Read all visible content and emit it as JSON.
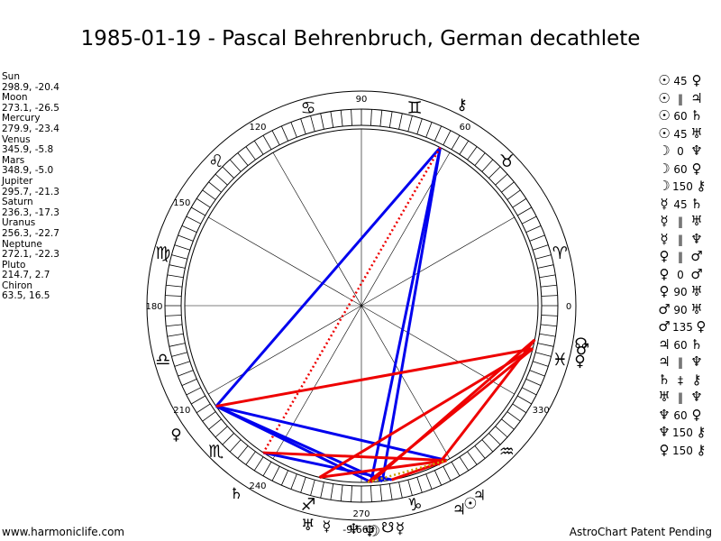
{
  "header": {
    "title": "1985-01-19 - Pascal Behrenbruch, German decathlete"
  },
  "planets": [
    {
      "name": "Sun",
      "coords": "298.9, -20.4",
      "lon": 298.9,
      "glyph": "☉",
      "color": "#000000"
    },
    {
      "name": "Moon",
      "coords": "273.1, -26.5",
      "lon": 273.1,
      "glyph": "☽",
      "color": "#000000"
    },
    {
      "name": "Mercury",
      "coords": "279.9, -23.4",
      "lon": 279.9,
      "glyph": "☿",
      "color": "#000000"
    },
    {
      "name": "Venus",
      "coords": "345.9, -5.8",
      "lon": 345.9,
      "glyph": "♀",
      "color": "#000000"
    },
    {
      "name": "Mars",
      "coords": "348.9, -5.0",
      "lon": 348.9,
      "glyph": "♂",
      "color": "#000000"
    },
    {
      "name": "Jupiter",
      "coords": "295.7, -21.3",
      "lon": 295.7,
      "glyph": "♃",
      "color": "#000000"
    },
    {
      "name": "Saturn",
      "coords": "236.3, -17.3",
      "lon": 236.3,
      "glyph": "♄",
      "color": "#000000"
    },
    {
      "name": "Uranus",
      "coords": "256.3, -22.7",
      "lon": 256.3,
      "glyph": "♅",
      "color": "#000000"
    },
    {
      "name": "Neptune",
      "coords": "272.1, -22.3",
      "lon": 272.1,
      "glyph": "♆",
      "color": "#000000"
    },
    {
      "name": "Pluto",
      "coords": "214.7, 2.7",
      "lon": 214.7,
      "glyph": "♀",
      "color": "#000000"
    },
    {
      "name": "Chiron",
      "coords": "63.5, 16.5",
      "lon": 63.5,
      "glyph": "⚷",
      "color": "#000000"
    }
  ],
  "extra_markers": [
    {
      "glyph": "☊",
      "lon": 350.5
    },
    {
      "glyph": "☋",
      "lon": 276.8
    },
    {
      "glyph": "♃",
      "lon": 302.0
    },
    {
      "glyph": "♆",
      "lon": 268.0
    },
    {
      "glyph": "☿",
      "lon": 261.0
    }
  ],
  "bottom_label": "-9,663",
  "degree_labels": [
    {
      "text": "0",
      "deg": 0
    },
    {
      "text": "90",
      "deg": 90
    },
    {
      "text": "120",
      "deg": 120
    },
    {
      "text": "150",
      "deg": 150
    },
    {
      "text": "180",
      "deg": 180
    },
    {
      "text": "210",
      "deg": 210
    },
    {
      "text": "240",
      "deg": 240
    },
    {
      "text": "270",
      "deg": 270
    },
    {
      "text": "330",
      "deg": 330
    },
    {
      "text": "60",
      "deg": 60
    }
  ],
  "zodiac_signs": [
    {
      "glyph": "♈",
      "deg": 15
    },
    {
      "glyph": "♉",
      "deg": 45
    },
    {
      "glyph": "♊",
      "deg": 75
    },
    {
      "glyph": "♋",
      "deg": 105
    },
    {
      "glyph": "♌",
      "deg": 135
    },
    {
      "glyph": "♍",
      "deg": 165
    },
    {
      "glyph": "♎",
      "deg": 195
    },
    {
      "glyph": "♏",
      "deg": 225
    },
    {
      "glyph": "♐",
      "deg": 255
    },
    {
      "glyph": "♑",
      "deg": 285
    },
    {
      "glyph": "♒",
      "deg": 315
    },
    {
      "glyph": "♓",
      "deg": 345
    }
  ],
  "aspect_lines": [
    {
      "from": 63.5,
      "to": 214.7,
      "color": "#0000ee",
      "style": "solid"
    },
    {
      "from": 63.5,
      "to": 273.1,
      "color": "#0000ee",
      "style": "solid"
    },
    {
      "from": 63.5,
      "to": 276.8,
      "color": "#0000ee",
      "style": "solid"
    },
    {
      "from": 63.5,
      "to": 236.3,
      "color": "#ee0000",
      "style": "dotted"
    },
    {
      "from": 214.7,
      "to": 273.1,
      "color": "#0000ee",
      "style": "solid"
    },
    {
      "from": 214.7,
      "to": 276.8,
      "color": "#0000ee",
      "style": "solid"
    },
    {
      "from": 214.7,
      "to": 298.9,
      "color": "#0000ee",
      "style": "solid"
    },
    {
      "from": 236.3,
      "to": 279.9,
      "color": "#0000ee",
      "style": "solid"
    },
    {
      "from": 236.3,
      "to": 298.9,
      "color": "#ee0000",
      "style": "solid"
    },
    {
      "from": 214.7,
      "to": 345.9,
      "color": "#ee0000",
      "style": "solid"
    },
    {
      "from": 345.9,
      "to": 256.3,
      "color": "#ee0000",
      "style": "solid"
    },
    {
      "from": 345.9,
      "to": 272.1,
      "color": "#ee0000",
      "style": "solid"
    },
    {
      "from": 348.9,
      "to": 273.1,
      "color": "#ee0000",
      "style": "solid"
    },
    {
      "from": 348.9,
      "to": 295.7,
      "color": "#ee0000",
      "style": "solid"
    },
    {
      "from": 279.9,
      "to": 298.9,
      "color": "#ee0000",
      "style": "solid"
    },
    {
      "from": 256.3,
      "to": 298.9,
      "color": "#ee0000",
      "style": "solid"
    },
    {
      "from": 272.1,
      "to": 298.9,
      "color": "#c8a000",
      "style": "dotted"
    }
  ],
  "aspect_list": [
    {
      "p1": "☉",
      "asp": "45",
      "p2": "♀"
    },
    {
      "p1": "☉",
      "asp": "‖",
      "p2": "♃"
    },
    {
      "p1": "☉",
      "asp": "60",
      "p2": "♄"
    },
    {
      "p1": "☉",
      "asp": "45",
      "p2": "♅"
    },
    {
      "p1": "☽",
      "asp": "0",
      "p2": "♆"
    },
    {
      "p1": "☽",
      "asp": "60",
      "p2": "♀"
    },
    {
      "p1": "☽",
      "asp": "150",
      "p2": "⚷"
    },
    {
      "p1": "☿",
      "asp": "45",
      "p2": "♄"
    },
    {
      "p1": "☿",
      "asp": "‖",
      "p2": "♅"
    },
    {
      "p1": "☿",
      "asp": "‖",
      "p2": "♆"
    },
    {
      "p1": "♀",
      "asp": "‖",
      "p2": "♂"
    },
    {
      "p1": "♀",
      "asp": "0",
      "p2": "♂"
    },
    {
      "p1": "♀",
      "asp": "90",
      "p2": "♅"
    },
    {
      "p1": "♂",
      "asp": "90",
      "p2": "♅"
    },
    {
      "p1": "♂",
      "asp": "135",
      "p2": "♀"
    },
    {
      "p1": "♃",
      "asp": "60",
      "p2": "♄"
    },
    {
      "p1": "♃",
      "asp": "‖",
      "p2": "♆"
    },
    {
      "p1": "♄",
      "asp": "‡",
      "p2": "⚷"
    },
    {
      "p1": "♅",
      "asp": "‖",
      "p2": "♆"
    },
    {
      "p1": "♆",
      "asp": "60",
      "p2": "♀"
    },
    {
      "p1": "♆",
      "asp": "150",
      "p2": "⚷"
    },
    {
      "p1": "♀",
      "asp": "150",
      "p2": "⚷"
    }
  ],
  "footer": {
    "left": "www.harmoniclife.com",
    "right": "AstroChart Patent Pending"
  },
  "chart_data": {
    "type": "scatter",
    "title": "1985-01-19 - Pascal Behrenbruch, German decathlete",
    "xlabel": "",
    "ylabel": "",
    "points": [
      {
        "name": "Sun",
        "longitude": 298.9,
        "latitude": -20.4
      },
      {
        "name": "Moon",
        "longitude": 273.1,
        "latitude": -26.5
      },
      {
        "name": "Mercury",
        "longitude": 279.9,
        "latitude": -23.4
      },
      {
        "name": "Venus",
        "longitude": 345.9,
        "latitude": -5.8
      },
      {
        "name": "Mars",
        "longitude": 348.9,
        "latitude": -5.0
      },
      {
        "name": "Jupiter",
        "longitude": 295.7,
        "latitude": -21.3
      },
      {
        "name": "Saturn",
        "longitude": 236.3,
        "latitude": -17.3
      },
      {
        "name": "Uranus",
        "longitude": 256.3,
        "latitude": -22.7
      },
      {
        "name": "Neptune",
        "longitude": 272.1,
        "latitude": -22.3
      },
      {
        "name": "Pluto",
        "longitude": 214.7,
        "latitude": 2.7
      },
      {
        "name": "Chiron",
        "longitude": 63.5,
        "latitude": 16.5
      }
    ]
  }
}
